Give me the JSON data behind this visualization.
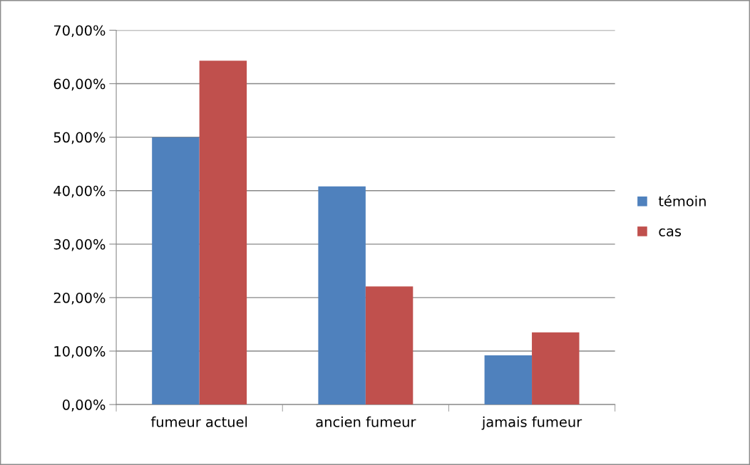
{
  "chart_data": {
    "type": "bar",
    "categories": [
      "fumeur actuel",
      "ancien fumeur",
      "jamais fumeur"
    ],
    "series": [
      {
        "name": "témoin",
        "color": "#4f81bd",
        "values": [
          50.0,
          40.8,
          9.2
        ]
      },
      {
        "name": "cas",
        "color": "#c0504d",
        "values": [
          64.3,
          22.1,
          13.5
        ]
      }
    ],
    "ylim": [
      0,
      70
    ],
    "yticks": [
      {
        "value": 0,
        "label": "0,00%"
      },
      {
        "value": 10,
        "label": "10,00%"
      },
      {
        "value": 20,
        "label": "20,00%"
      },
      {
        "value": 30,
        "label": "30,00%"
      },
      {
        "value": 40,
        "label": "40,00%"
      },
      {
        "value": 50,
        "label": "50,00%"
      },
      {
        "value": 60,
        "label": "60,00%"
      },
      {
        "value": 70,
        "label": "70,00%"
      }
    ],
    "grid": "y",
    "legend": "right"
  }
}
